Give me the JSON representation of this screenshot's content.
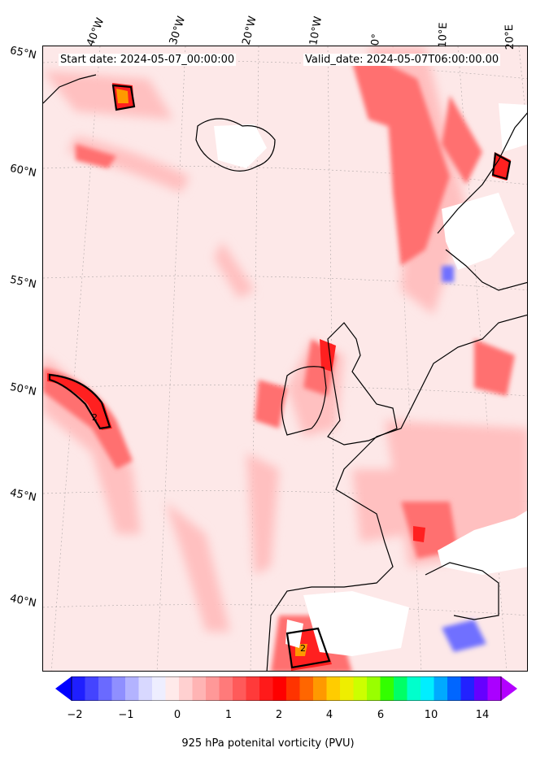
{
  "header": {
    "start_date": "Start date: 2024-05-07_00:00:00",
    "valid_date": "Valid_date: 2024-05-07T06:00:00.00"
  },
  "lon_labels": [
    "40°W",
    "30°W",
    "20°W",
    "10°W",
    "0°",
    "10°E",
    "20°E"
  ],
  "lat_labels": [
    "65°N",
    "60°N",
    "55°N",
    "50°N",
    "45°N",
    "40°N"
  ],
  "colorbar": {
    "label": "925 hPa potenital vorticity (PVU)",
    "ticks": [
      "−2",
      "−1",
      "0",
      "1",
      "2",
      "4",
      "6",
      "10",
      "14"
    ],
    "colors": [
      "#1f1fff",
      "#4444ff",
      "#6a6aff",
      "#8f8fff",
      "#b3b3ff",
      "#d8d8ff",
      "#eeeeff",
      "#ffeaea",
      "#ffd0d0",
      "#ffb4b4",
      "#ff9898",
      "#ff7a7a",
      "#ff5a5a",
      "#ff3a3a",
      "#ff1a1a",
      "#ff0000",
      "#ff3300",
      "#ff6600",
      "#ff9900",
      "#ffcc00",
      "#eeee00",
      "#ccff00",
      "#99ff00",
      "#33ff00",
      "#00ff66",
      "#00ffcc",
      "#00eeff",
      "#00aaff",
      "#0066ff",
      "#2222ff",
      "#6600ff",
      "#aa00ff"
    ],
    "extend_low_color": "#0000ff",
    "extend_high_color": "#b300ff"
  },
  "colors": {
    "background_field": "#fde8e8",
    "coastline": "#000000",
    "high_pv": "#ff2020",
    "medium_pv": "#ff8a8a",
    "low_pv": "#ffc8c8",
    "missing": "#ffffff"
  },
  "contour_label": "2"
}
